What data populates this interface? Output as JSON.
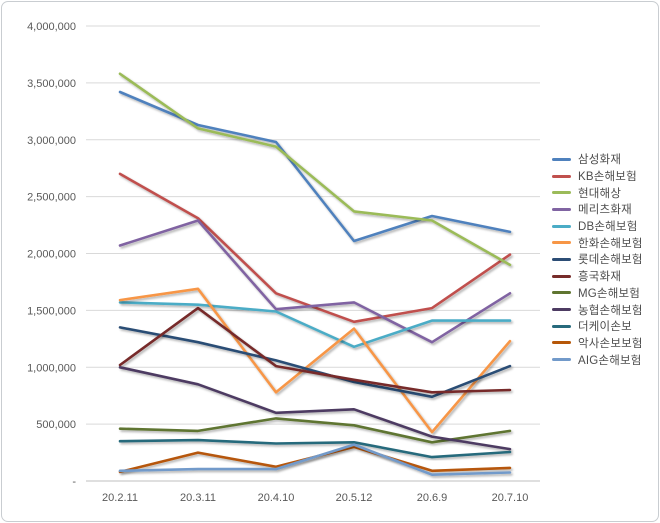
{
  "chart_data": {
    "type": "line",
    "title": "",
    "xlabel": "",
    "ylabel": "",
    "x_categories": [
      "20.2.11",
      "20.3.11",
      "20.4.10",
      "20.5.12",
      "20.6.9",
      "20.7.10"
    ],
    "ylim": [
      0,
      4000000
    ],
    "y_ticks": [
      0,
      500000,
      1000000,
      1500000,
      2000000,
      2500000,
      3000000,
      3500000,
      4000000
    ],
    "y_tick_labels": [
      "-",
      "500,000",
      "1,000,000",
      "1,500,000",
      "2,000,000",
      "2,500,000",
      "3,000,000",
      "3,500,000",
      "4,000,000"
    ],
    "grid": "horizontal",
    "legend_position": "right",
    "series": [
      {
        "name": "삼성화재",
        "color": "#4F81BD",
        "values": [
          3420000,
          3130000,
          2980000,
          2110000,
          2330000,
          2190000
        ]
      },
      {
        "name": "KB손해보험",
        "color": "#C0504D",
        "values": [
          2700000,
          2310000,
          1650000,
          1400000,
          1520000,
          1990000
        ]
      },
      {
        "name": "현대해상",
        "color": "#9BBB59",
        "values": [
          3580000,
          3100000,
          2940000,
          2370000,
          2290000,
          1900000
        ]
      },
      {
        "name": "메리츠화재",
        "color": "#8064A2",
        "values": [
          2070000,
          2290000,
          1510000,
          1570000,
          1220000,
          1650000
        ]
      },
      {
        "name": "DB손해보험",
        "color": "#4BACC6",
        "values": [
          1570000,
          1550000,
          1490000,
          1180000,
          1410000,
          1410000
        ]
      },
      {
        "name": "한화손해보험",
        "color": "#F79646",
        "values": [
          1590000,
          1690000,
          780000,
          1340000,
          430000,
          1230000
        ]
      },
      {
        "name": "롯데손해보험",
        "color": "#2C4D75",
        "values": [
          1350000,
          1220000,
          1060000,
          870000,
          740000,
          1010000
        ]
      },
      {
        "name": "흥국화재",
        "color": "#772C2A",
        "values": [
          1020000,
          1520000,
          1010000,
          890000,
          780000,
          800000
        ]
      },
      {
        "name": "MG손해보험",
        "color": "#5F7530",
        "values": [
          460000,
          440000,
          550000,
          490000,
          340000,
          440000
        ]
      },
      {
        "name": "농협손해보험",
        "color": "#4D3B62",
        "values": [
          1000000,
          850000,
          600000,
          630000,
          390000,
          280000
        ]
      },
      {
        "name": "더케이손보",
        "color": "#276A7C",
        "values": [
          350000,
          360000,
          330000,
          340000,
          210000,
          255000
        ]
      },
      {
        "name": "악사손보보험",
        "color": "#B65708",
        "values": [
          80000,
          250000,
          125000,
          300000,
          90000,
          115000
        ]
      },
      {
        "name": "AIG손해보험",
        "color": "#729ACA",
        "values": [
          90000,
          105000,
          105000,
          320000,
          55000,
          75000
        ]
      }
    ]
  },
  "colors": {
    "background": "#ffffff",
    "gridline": "#d9d9d9",
    "axisline": "#bfbfbf",
    "tick_text": "#595959",
    "legend_text": "#4d4d4d",
    "border": "#c9cdd1"
  }
}
